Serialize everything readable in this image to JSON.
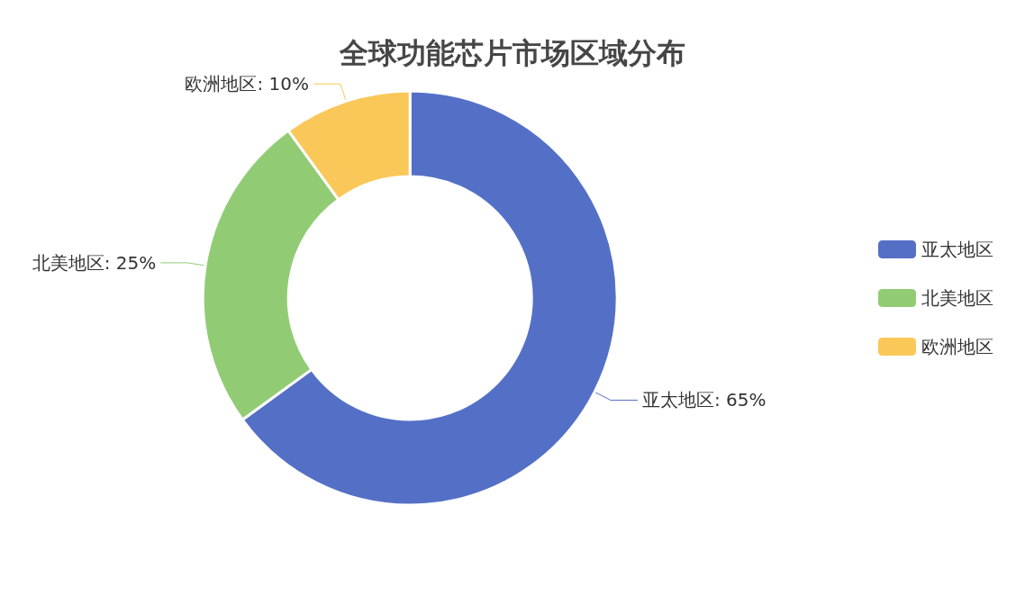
{
  "chart_data": {
    "type": "donut",
    "title": "全球功能芯片市场区域分布",
    "categories": [
      "亚太地区",
      "北美地区",
      "欧洲地区"
    ],
    "values": [
      65,
      25,
      10
    ],
    "colors": [
      "#5470c6",
      "#91cc75",
      "#fac858"
    ],
    "value_labels": [
      ": 65%",
      ": 25%",
      ": 10%"
    ],
    "legend": "right"
  }
}
